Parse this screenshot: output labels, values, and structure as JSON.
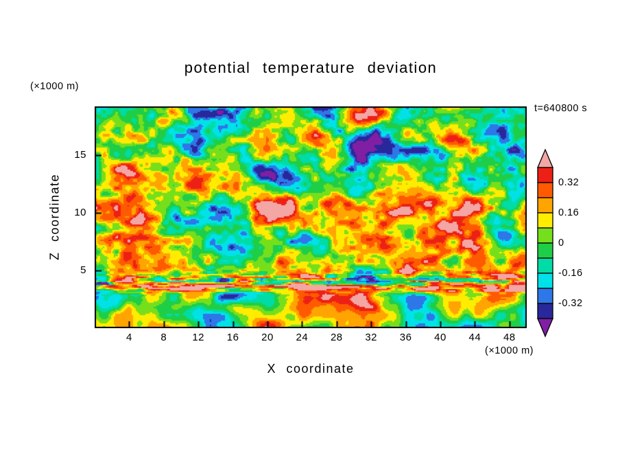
{
  "chart_data": {
    "type": "heatmap",
    "title": "potential temperature deviation",
    "xlabel": "X coordinate",
    "ylabel": "Z coordinate",
    "x_unit_annotation": "(×1000 m)",
    "z_unit_annotation": "(×1000 m)",
    "time_annotation": "t=640800 s",
    "x_ticks": [
      4,
      8,
      12,
      16,
      20,
      24,
      28,
      32,
      36,
      40,
      44,
      48
    ],
    "z_ticks": [
      5,
      10,
      15
    ],
    "xlim": [
      0,
      50
    ],
    "zlim": [
      0,
      19.2
    ],
    "grid": false,
    "legend_position": "right-colorbar",
    "contour_interval": 0.08,
    "colorbar": {
      "tick_labels": [
        "0.32",
        "0.16",
        "0",
        "-0.16",
        "-0.32"
      ],
      "tick_values": [
        0.32,
        0.16,
        0,
        -0.16,
        -0.32
      ],
      "levels_desc": [
        0.4,
        0.32,
        0.24,
        0.16,
        0.08,
        0,
        -0.08,
        -0.16,
        -0.24,
        -0.32,
        -0.4
      ],
      "over_color": "#F3A6A4",
      "under_color": "#801FA3",
      "band_colors_top_to_bottom": [
        "#ED2015",
        "#FF5A00",
        "#FFA400",
        "#FFEC00",
        "#76DF1C",
        "#1FCE47",
        "#00DCA5",
        "#00E2E8",
        "#2E77E8",
        "#28289B"
      ]
    },
    "field": {
      "description": "Filled-contour turbulent potential temperature deviation field on an X–Z vertical cross-section. Values mostly between -0.4 and 0.4 (pink above 0.4, purple below -0.4). Characteristic features: large irregular turbulent cells aloft, elongated warm (orange/red/pink) anomalies near z≈8–11 ×1000 m, a thin streaky layer of extreme positive/negative values (pink/navy/purple bands) near z≈3.5–4.5 ×1000 m, and smooth large cells below z≈3 ×1000 m.",
      "value_range_displayed": [
        -0.4,
        0.4
      ]
    },
    "frame_color": "#000000",
    "background_color": "#FFFFFF",
    "text_color": "#000000"
  }
}
